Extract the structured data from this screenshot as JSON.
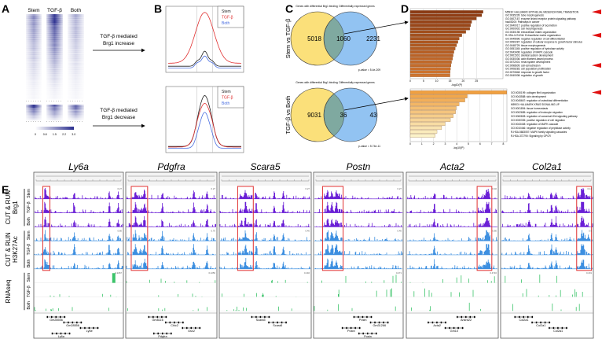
{
  "panel_letters": {
    "a": "A",
    "b": "B",
    "c": "C",
    "d": "D",
    "e": "E"
  },
  "panel_a": {
    "columns": [
      "Stem",
      "TGF-β",
      "Both"
    ],
    "colorbar_ticks": [
      "0",
      "0.8",
      "1.5",
      "2.2",
      "3.0"
    ],
    "colormap": [
      "#ffffff",
      "#2b2f8f"
    ]
  },
  "arrows": {
    "increase": {
      "line1": "TGF-β mediated",
      "line2": "Brg1 increase"
    },
    "decrease": {
      "line1": "TGF-β mediated",
      "line2": "Brg1 decrease"
    }
  },
  "panel_b": {
    "legend": [
      {
        "label": "Stem",
        "color": "#222222"
      },
      {
        "label": "TGF-β",
        "color": "#e03030"
      },
      {
        "label": "Both",
        "color": "#4a6ee0"
      }
    ]
  },
  "panel_c": {
    "venns": [
      {
        "comparison": "Stem vs TGF-β",
        "left_title": "Genes with differential Brg1 binding",
        "right_title": "Differentially expressed genes",
        "left_only": "5018",
        "overlap": "1060",
        "right_only": "2231",
        "pvalue": "p-value = 5.4e-209"
      },
      {
        "comparison": "TGF-β vs Both",
        "left_title": "Genes with differential Brg1 binding",
        "right_title": "Differentially expressed genes",
        "left_only": "9031",
        "overlap": "36",
        "right_only": "43",
        "pvalue": "p-value = 5.74e-11"
      }
    ],
    "colors": {
      "left": "#fbe07a",
      "right": "#7fb8f0",
      "overlap": "#7fa9a0"
    }
  },
  "chart_data": [
    {
      "type": "bar",
      "orientation": "horizontal",
      "xlabel": "-log10(P)",
      "xlim": [
        0,
        27
      ],
      "xticks": [
        "0",
        "5",
        "10",
        "15",
        "20",
        "25"
      ],
      "grid": true,
      "colors": [
        "#8b3a12",
        "#d0752f"
      ],
      "categories": [
        "M5930: HALLMARK EPITHELIAL MESENCHYMAL TRANSITION",
        "GO:0035239: tube morphogenesis",
        "GO:0007167: enzyme linked receptor protein signaling pathway",
        "hsa05200: Pathways in cancer",
        "GO:0040017: positive regulation of locomotion",
        "GO:0000902: cell morphogenesis",
        "GO:0030198: extracellular matrix organization",
        "R-HSA-1474244: Extracellular matrix organization",
        "GO:0045596: negative regulation of cell differentiation",
        "GO:0090287: regulation of cellular response to growth factor stimulus",
        "GO:0048729: tissue morphogenesis",
        "GO:0051345: positive regulation of hydrolase activity",
        "GO:0043408: regulation of MAPK cascade",
        "GO:0001501: skeletal system development",
        "GO:0030036: actin filament-based process",
        "GO:0072001: renal system development",
        "GO:0098609: cell-cell adhesion",
        "GO:0008283: cell population proliferation",
        "GO:0070848: response to growth factor",
        "GO:0040008: regulation of growth"
      ],
      "values": [
        27.5,
        27,
        25,
        23.2,
        22.8,
        22.5,
        21,
        19.5,
        18.5,
        18,
        17.5,
        17,
        16.5,
        16.2,
        16,
        15.6,
        15.4,
        15.2,
        15.1,
        15
      ],
      "highlighted": [
        0,
        7,
        16
      ]
    },
    {
      "type": "bar",
      "orientation": "horizontal",
      "xlabel": "-log10(P)",
      "xlim": [
        0,
        8.5
      ],
      "xticks": [
        "0",
        "1",
        "2",
        "3",
        "4",
        "5",
        "6",
        "7",
        "8"
      ],
      "grid": true,
      "colors": [
        "#f0a040",
        "#fbf2c8"
      ],
      "categories": [
        "GO:0030199: collagen fibril organization",
        "GO:0043588: skin development",
        "GO:0045667: regulation of osteoblast differentiation",
        "M5903: HALLMARK KRAS SIGNALING UP",
        "GO:0001894: tissue homeostasis",
        "GO:0002685: regulation of leukocyte migration",
        "GO:0060828: regulation of canonical Wnt signaling pathway",
        "GO:0030335: positive regulation of cell migration",
        "GO:0043408: regulation of MAPK cascade",
        "GO:0010466: negative regulation of peptidase activity",
        "R-HSA-5683057: MAPK family signaling cascades",
        "R-HSA-372790: Signaling by GPCR"
      ],
      "values": [
        8.3,
        4.9,
        4.7,
        4.2,
        3.95,
        3.9,
        3.7,
        3.45,
        3.0,
        2.7,
        2.3,
        2.15
      ],
      "highlighted": [
        0
      ]
    }
  ],
  "panel_e": {
    "groups": [
      {
        "line1": "CUT & RUN",
        "line2": "Brg1",
        "color": "#6a1fd6"
      },
      {
        "line1": "CUT & RUN",
        "line2": "H3K27Ac",
        "color": "#3d8fe0"
      },
      {
        "line1": "RNAseq",
        "line2": "",
        "color": "#3cc46a"
      }
    ],
    "samples": [
      "Stem",
      "TGF-β",
      "Both"
    ],
    "loci": [
      {
        "gene": "Ly6a",
        "scales": [
          "0.27",
          "0.80",
          "0.2267"
        ],
        "annotations": [
          "Gm28556",
          "Gm28556",
          "Ly6e",
          "Ly6a"
        ]
      },
      {
        "gene": "Pdgfra",
        "scales": [
          "0.27",
          "0.70",
          "0.2256"
        ],
        "annotations": [
          "Gm8116",
          "Chic2",
          "Gsx2",
          "Pdgfra"
        ]
      },
      {
        "gene": "Scara5",
        "scales": [
          "0.27",
          "0.40",
          "0.440"
        ],
        "annotations": [
          "Scara5",
          "Scara5"
        ]
      },
      {
        "gene": "Postn",
        "scales": [
          "0.27",
          "0.40",
          "0.271"
        ],
        "annotations": [
          "Postn",
          "Gm31266",
          "Postn",
          "Postn"
        ]
      },
      {
        "gene": "Acta2",
        "scales": [
          "0.40",
          "0.80",
          "0.4716"
        ],
        "annotations": [
          "Ankrd22",
          "Acta2",
          "Gm10"
        ]
      },
      {
        "gene": "Col2a1",
        "scales": [
          "0.14",
          "0.9",
          "0.201"
        ],
        "annotations": [
          "Col2a1",
          "Col2a1",
          "Col2a1"
        ]
      }
    ]
  }
}
